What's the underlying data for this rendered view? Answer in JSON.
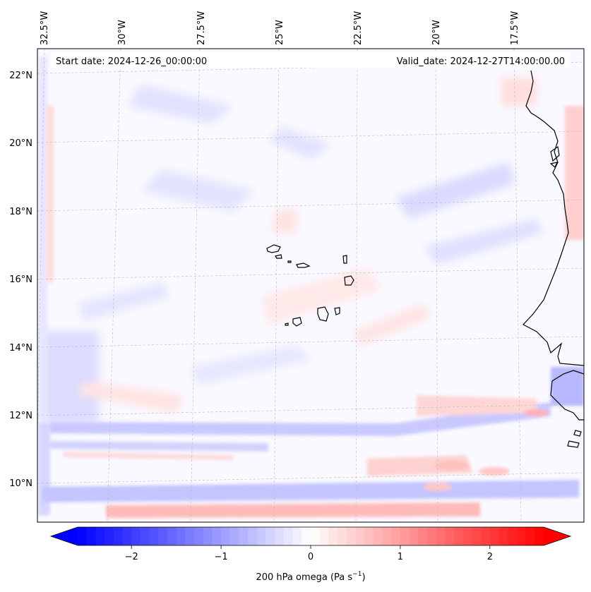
{
  "map": {
    "start_label": "Start date: 2024-12-26_00:00:00",
    "valid_label": "Valid_date: 2024-12-27T14:00:00.00",
    "lon_labels": [
      "32.5°W",
      "30°W",
      "27.5°W",
      "25°W",
      "22.5°W",
      "20°W",
      "17.5°W"
    ],
    "lat_labels": [
      "22°N",
      "20°N",
      "18°N",
      "16°N",
      "14°N",
      "12°N",
      "10°N"
    ]
  },
  "colorbar": {
    "label_text": "200 hPa omega (Pa s",
    "label_exp": "−1",
    "label_close": ")",
    "ticks": [
      {
        "value": -2,
        "label": "−2"
      },
      {
        "value": -1,
        "label": "−1"
      },
      {
        "value": 0,
        "label": "0"
      },
      {
        "value": 1,
        "label": "1"
      },
      {
        "value": 2,
        "label": "2"
      }
    ],
    "vmin": -2.6,
    "vmax": 2.6,
    "levels": 52,
    "colors": {
      "low": "#0000ff",
      "mid": "#ffffff",
      "high": "#ff0000"
    }
  }
}
